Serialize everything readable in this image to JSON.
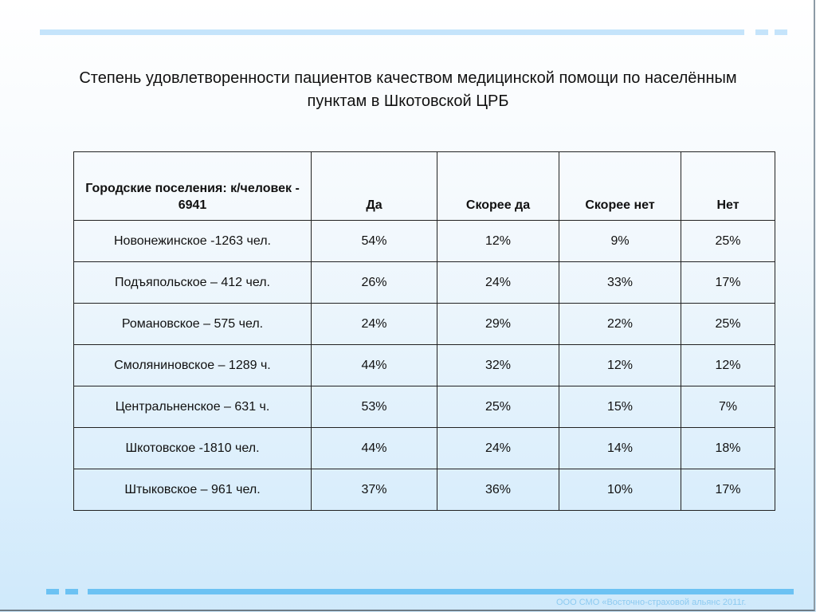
{
  "title": "Степень удовлетворенности пациентов качеством медицинской помощи по населённым пунктам в Шкотовской ЦРБ",
  "table": {
    "headers": [
      "Городские поселения: к/человек - 6941",
      "Да",
      "Скорее да",
      "Скорее нет",
      "Нет"
    ],
    "rows": [
      [
        "Новонежинское -1263 чел.",
        "54%",
        "12%",
        "9%",
        "25%"
      ],
      [
        "Подъяпольское – 412 чел.",
        "26%",
        "24%",
        "33%",
        "17%"
      ],
      [
        "Романовское – 575 чел.",
        "24%",
        "29%",
        "22%",
        "25%"
      ],
      [
        "Смоляниновское – 1289 ч.",
        "44%",
        "32%",
        "12%",
        "12%"
      ],
      [
        "Центральненское – 631 ч.",
        "53%",
        "25%",
        "15%",
        "7%"
      ],
      [
        "Шкотовское -1810 чел.",
        "44%",
        "24%",
        "14%",
        "18%"
      ],
      [
        "Штыковское – 961 чел.",
        "37%",
        "36%",
        "10%",
        "17%"
      ]
    ]
  },
  "footer": "ООО СМО «Восточно-страховой альянс 2011г.",
  "colors": {
    "accent_light": "#c5e4fb",
    "accent": "#6cc2f3"
  }
}
